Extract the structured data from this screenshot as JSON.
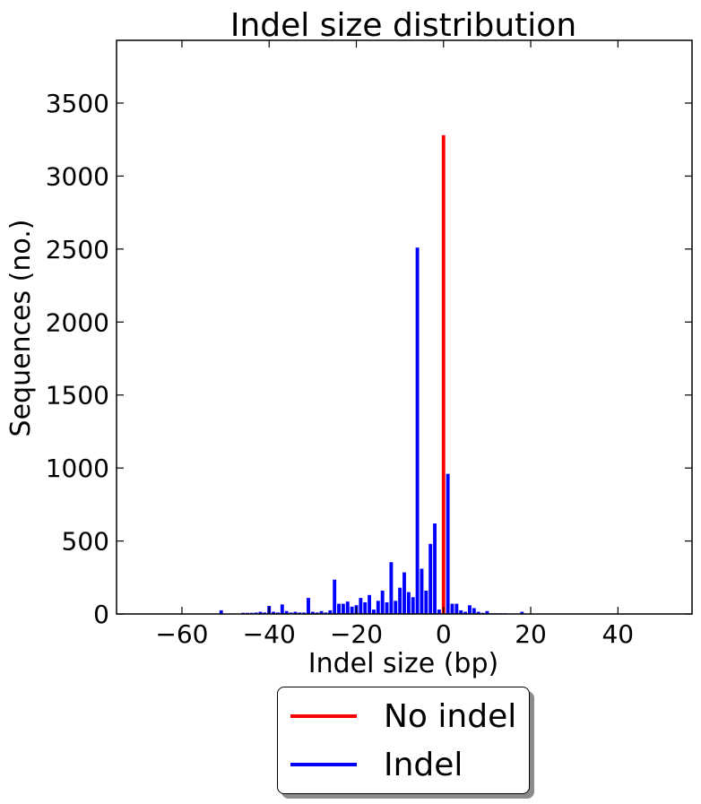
{
  "chart_data": {
    "type": "bar",
    "title": "Indel size distribution",
    "xlabel": "Indel size (bp)",
    "ylabel": "Sequences (no.)",
    "xlim": [
      -75,
      57
    ],
    "ylim": [
      0,
      3930
    ],
    "xticks": [
      "−60",
      "−40",
      "−20",
      "0",
      "20",
      "40"
    ],
    "xtick_values": [
      -60,
      -40,
      -20,
      0,
      20,
      40
    ],
    "yticks": [
      "0",
      "500",
      "1000",
      "1500",
      "2000",
      "2500",
      "3000",
      "3500"
    ],
    "ytick_values": [
      0,
      500,
      1000,
      1500,
      2000,
      2500,
      3000,
      3500
    ],
    "grid": false,
    "legend_position": "below",
    "series": [
      {
        "name": "No indel",
        "color": "#ff0000",
        "x": [
          0
        ],
        "values": [
          3280
        ]
      },
      {
        "name": "Indel",
        "color": "#0000ff",
        "x": [
          -51,
          -46,
          -45,
          -44,
          -43,
          -42,
          -41,
          -40,
          -39,
          -38,
          -37,
          -36,
          -35,
          -34,
          -33,
          -32,
          -31,
          -30,
          -29,
          -28,
          -27,
          -26,
          -25,
          -24,
          -23,
          -22,
          -21,
          -20,
          -19,
          -18,
          -17,
          -16,
          -15,
          -14,
          -13,
          -12,
          -11,
          -10,
          -9,
          -8,
          -7,
          -6,
          -5,
          -4,
          -3,
          -2,
          -1,
          1,
          2,
          3,
          4,
          5,
          6,
          7,
          8,
          9,
          10,
          11,
          12,
          13,
          14,
          18
        ],
        "values": [
          25,
          8,
          8,
          8,
          10,
          15,
          10,
          55,
          15,
          10,
          65,
          20,
          10,
          15,
          10,
          10,
          110,
          15,
          10,
          20,
          10,
          25,
          235,
          70,
          70,
          85,
          50,
          60,
          110,
          80,
          130,
          30,
          90,
          160,
          80,
          355,
          90,
          180,
          285,
          150,
          115,
          2510,
          310,
          160,
          480,
          620,
          30,
          960,
          70,
          70,
          25,
          15,
          60,
          40,
          15,
          8,
          20,
          5,
          5,
          5,
          5,
          15
        ]
      }
    ]
  }
}
